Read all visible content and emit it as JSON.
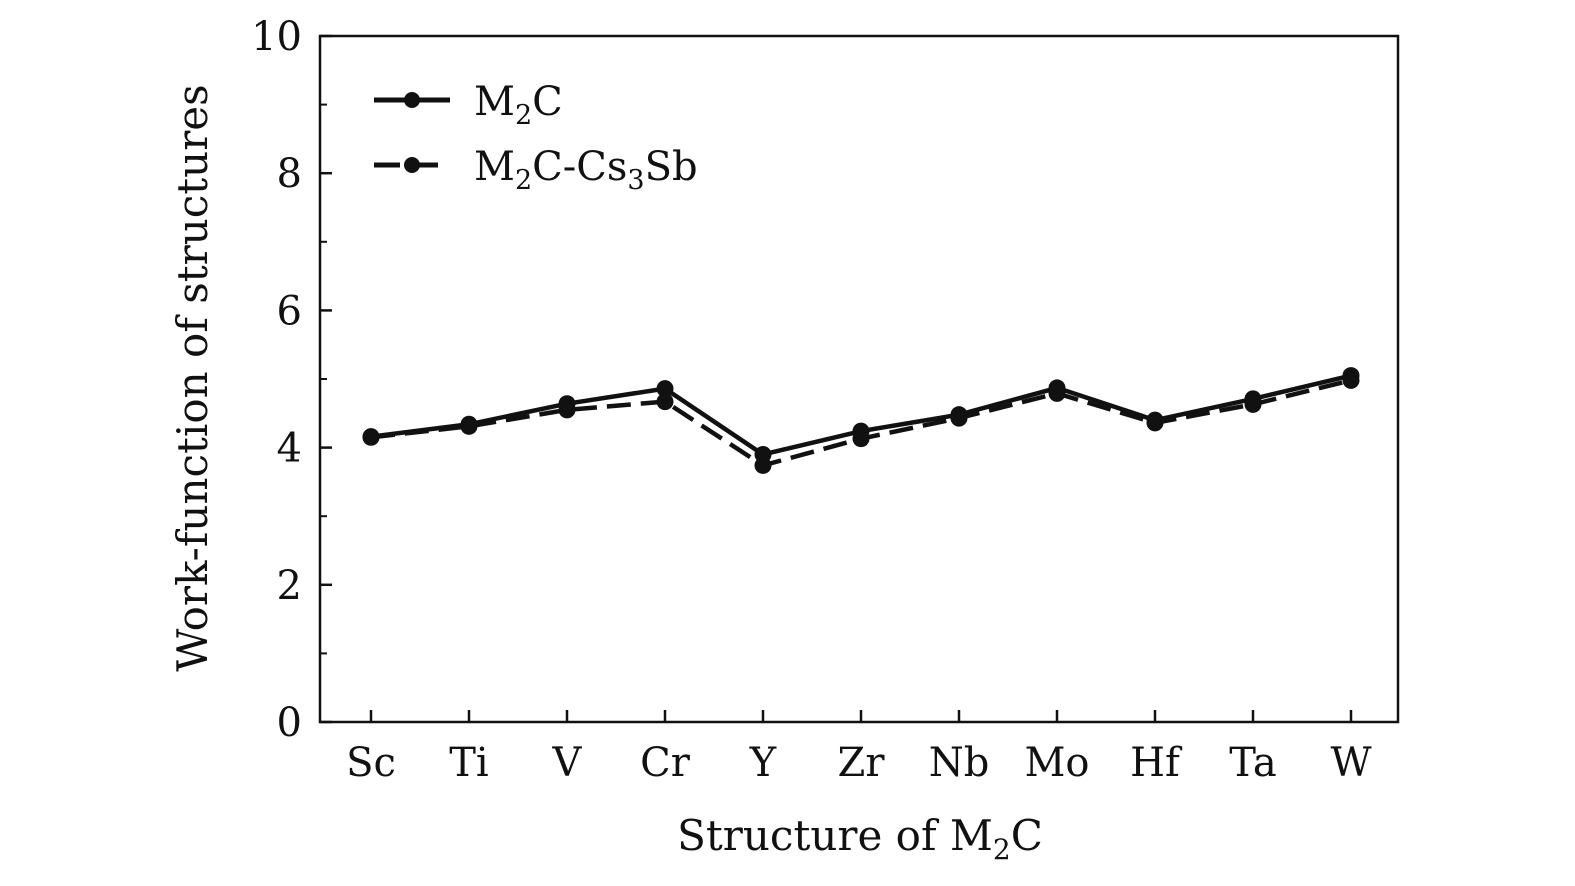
{
  "chart_data": {
    "type": "line",
    "xlabel": "Structure of M",
    "xlabel_sub": "2",
    "xlabel_tail": "C",
    "ylabel": "Work-function of structures",
    "ylim": [
      0,
      10
    ],
    "yticks": [
      "0",
      "2",
      "4",
      "6",
      "8",
      "10"
    ],
    "categories": [
      "Sc",
      "Ti",
      "V",
      "Cr",
      "Y",
      "Zr",
      "Nb",
      "Mo",
      "Hf",
      "Ta",
      "W"
    ],
    "grid": false,
    "legend_position": "top-left",
    "series": [
      {
        "name": "M2C",
        "name_parts": [
          "M",
          "2",
          "C"
        ],
        "style": "solid",
        "values": [
          4.16,
          4.34,
          4.64,
          4.86,
          3.9,
          4.24,
          4.48,
          4.87,
          4.4,
          4.71,
          5.05
        ]
      },
      {
        "name": "M2C-Cs3Sb",
        "name_parts": [
          "M",
          "2",
          "C-Cs",
          "3",
          "Sb"
        ],
        "style": "dashed",
        "values": [
          4.15,
          4.31,
          4.55,
          4.67,
          3.74,
          4.13,
          4.43,
          4.79,
          4.36,
          4.63,
          4.98
        ]
      }
    ],
    "colors": {
      "line": "#111111"
    }
  }
}
